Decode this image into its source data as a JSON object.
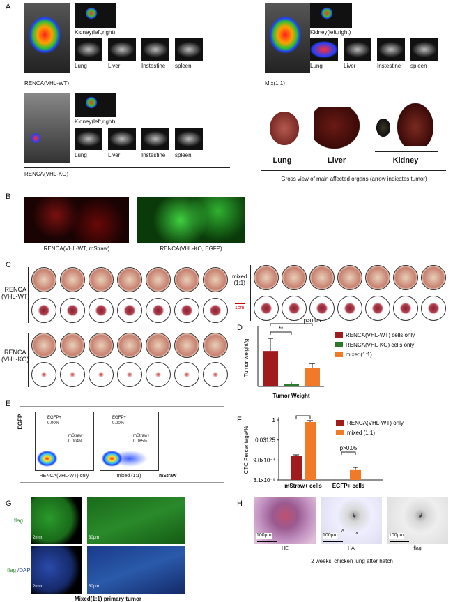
{
  "panel_labels": [
    "A",
    "B",
    "C",
    "D",
    "E",
    "F",
    "G",
    "H"
  ],
  "panel_a": {
    "groups": [
      {
        "label": "RENCA(VHL-WT)",
        "kidney": "Kidney(left,right)",
        "organs": [
          "Lung",
          "Liver",
          "Instestine",
          "spleen"
        ]
      },
      {
        "label": "Mix(1:1)",
        "kidney": "Kidney(left,right)",
        "organs": [
          "Lung",
          "Liver",
          "Instestine",
          "spleen"
        ]
      },
      {
        "label": "RENCA(VHL-KO)",
        "kidney": "Kidney(left,right)",
        "organs": [
          "Lung",
          "Liver",
          "Instestine",
          "spleen"
        ]
      }
    ],
    "gross_view": {
      "organs": [
        "Lung",
        "Liver",
        "Kidney"
      ],
      "caption": "Gross view of main affected organs (arrow indicates tumor)"
    }
  },
  "panel_b": {
    "captions": [
      "RENCA(VHL-WT, mStraw)",
      "RENCA(VHL-KO, EGFP)"
    ]
  },
  "panel_c": {
    "groups": [
      "RENCA\n(VHL-WT)",
      "mixed\n(1:1)",
      "RENCA\n(VHL-KO)"
    ],
    "scale_bar": "1cm"
  },
  "panel_e": {
    "y_axis": "EGFP",
    "x_axis": "mStraw",
    "plots": [
      {
        "label": "RENCA(VHL-WT) only",
        "gates": [
          {
            "name": "EGFP+",
            "value": "0.00%"
          },
          {
            "name": "mStraw+",
            "value": "0.004%"
          }
        ]
      },
      {
        "label": "mixed (1:1)",
        "gates": [
          {
            "name": "EGFP+",
            "value": "0.00%"
          },
          {
            "name": "mStraw+",
            "value": "0.085%"
          }
        ]
      }
    ]
  },
  "panel_g": {
    "rows": [
      [
        "flag"
      ],
      [
        "flag",
        "/DAPI"
      ]
    ],
    "scale_bars": [
      "2mm",
      "30μm",
      "2mm",
      "30μm"
    ],
    "caption": "Mixed(1:1) primary tumor"
  },
  "panel_h": {
    "stains": [
      "HE",
      "HA",
      "flag"
    ],
    "scale_bars": [
      "100μm",
      "100μm",
      "100μm"
    ],
    "markers": [
      "#",
      "#",
      "^",
      "^"
    ],
    "caption": "2 weeks' chicken lung after hatch"
  },
  "chart_data": [
    {
      "type": "bar",
      "title": "Tumor Weight",
      "y_label": "Tumor weight/g",
      "ylim": [
        0,
        0.5
      ],
      "series": [
        {
          "name": "RENCA(VHL-WT) cells only",
          "color": "#a01c1c",
          "values": [
            0.31
          ],
          "errors": [
            0.11
          ]
        },
        {
          "name": "RENCA(VHL-KO) cells only",
          "color": "#2a7a2a",
          "values": [
            0.02
          ],
          "errors": [
            0.02
          ]
        },
        {
          "name": "mixed(1:1)",
          "color": "#f07a28",
          "values": [
            0.16
          ],
          "errors": [
            0.04
          ]
        }
      ],
      "annotations": [
        "**",
        "p>0.05"
      ]
    },
    {
      "type": "bar",
      "y_label": "CTC Percentage/%",
      "log_scale": true,
      "ylim": [
        3.1e-05,
        1
      ],
      "yticks": [
        1,
        0.03125,
        {
          "value": 0.00098,
          "label": "9.8x10⁻⁴"
        },
        {
          "value": 3.1e-05,
          "label": "3.1x10⁻⁵"
        }
      ],
      "categories": [
        "mStraw+ cells",
        "EGFP+ cells"
      ],
      "series": [
        {
          "name": "RENCA(VHL-WT) only",
          "color": "#a01c1c",
          "values": [
            0.002,
            null
          ],
          "errors": [
            0.0004,
            null
          ]
        },
        {
          "name": "mixed (1:1)",
          "color": "#f07a28",
          "values": [
            0.7,
            0.00017
          ],
          "errors": [
            0.2,
            0.0001
          ]
        }
      ],
      "annotations": [
        "p>0.05"
      ]
    }
  ]
}
